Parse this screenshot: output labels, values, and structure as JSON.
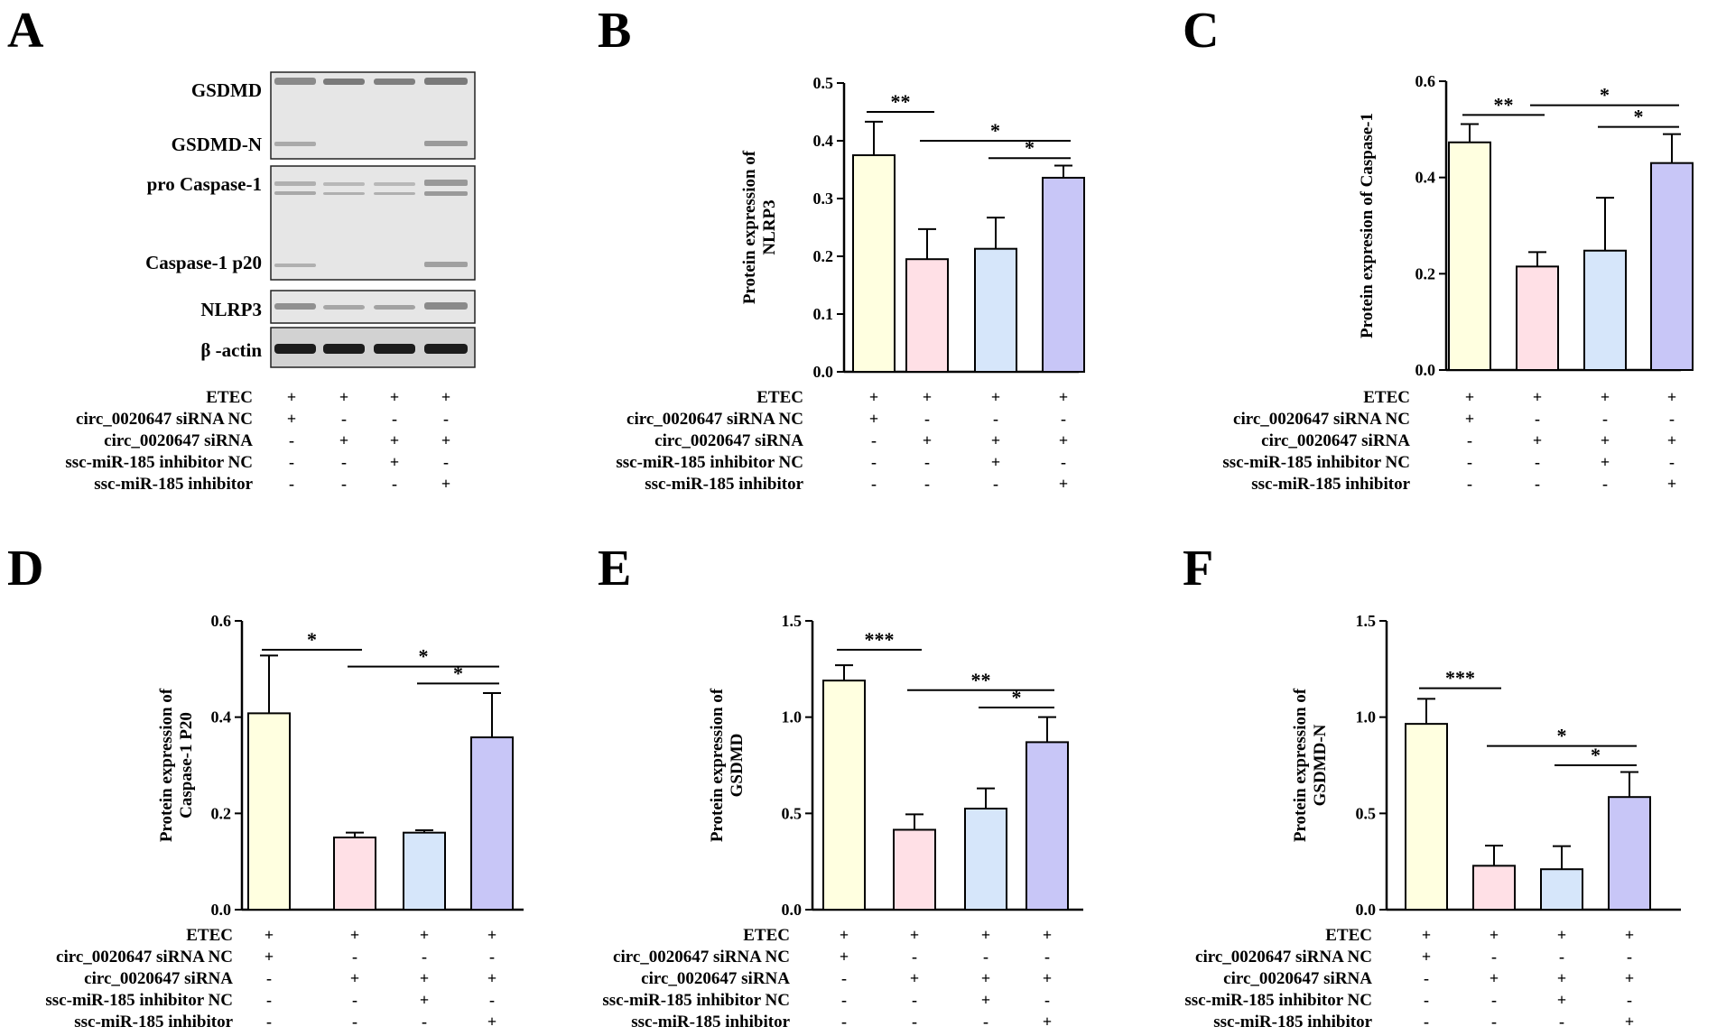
{
  "blot": {
    "letter": "A",
    "labels": {
      "gsdmd": "GSDMD",
      "gsdmd_n": "GSDMD-N",
      "pro_casp": "pro Caspase-1",
      "casp_p20": "Caspase-1 p20",
      "nlrp3": "NLRP3",
      "actin": "β -actin"
    }
  },
  "conditions": {
    "labels": [
      "ETEC",
      "circ_0020647 siRNA NC",
      "circ_0020647 siRNA",
      "ssc-miR-185 inhibitor NC",
      "ssc-miR-185 inhibitor"
    ],
    "matrix": [
      [
        "+",
        "+",
        "+",
        "+"
      ],
      [
        "+",
        "-",
        "-",
        "-"
      ],
      [
        "-",
        "+",
        "+",
        "+"
      ],
      [
        "-",
        "-",
        "+",
        "-"
      ],
      [
        "-",
        "-",
        "-",
        "+"
      ]
    ]
  },
  "colors": {
    "bar_fills": [
      "#ffffe0",
      "#ffe0e6",
      "#d6e6fa",
      "#c8c6f7"
    ],
    "axis": "#000000"
  },
  "chart_data": [
    {
      "id": "B",
      "letter": "B",
      "type": "bar",
      "ylabel_lines": [
        "Protein expression  of",
        "NLRP3"
      ],
      "ylim": [
        0,
        0.5
      ],
      "ticks": [
        0.0,
        0.1,
        0.2,
        0.3,
        0.4,
        0.5
      ],
      "tick_labels": [
        "0.0",
        "0.1",
        "0.2",
        "0.3",
        "0.4",
        "0.5"
      ],
      "values": [
        0.375,
        0.195,
        0.213,
        0.336
      ],
      "errors": [
        0.058,
        0.052,
        0.054,
        0.021
      ],
      "significance": [
        {
          "from": 0,
          "to": 1,
          "y": 0.45,
          "label": "**"
        },
        {
          "from": 1,
          "to": 3,
          "y": 0.4,
          "label": "*"
        },
        {
          "from": 2,
          "to": 3,
          "y": 0.37,
          "label": "*"
        }
      ]
    },
    {
      "id": "C",
      "letter": "C",
      "type": "bar",
      "ylabel_lines": [
        "Protein expresion of Caspase-1"
      ],
      "ylim": [
        0,
        0.6
      ],
      "ticks": [
        0.0,
        0.2,
        0.4,
        0.6
      ],
      "tick_labels": [
        "0.0",
        "0.2",
        "0.4",
        "0.6"
      ],
      "values": [
        0.473,
        0.215,
        0.248,
        0.43
      ],
      "errors": [
        0.038,
        0.03,
        0.11,
        0.06
      ],
      "significance": [
        {
          "from": 0,
          "to": 1,
          "y": 0.53,
          "label": "**"
        },
        {
          "from": 1,
          "to": 3,
          "y": 0.55,
          "label": "*"
        },
        {
          "from": 2,
          "to": 3,
          "y": 0.505,
          "label": "*"
        }
      ]
    },
    {
      "id": "D",
      "letter": "D",
      "type": "bar",
      "ylabel_lines": [
        "Protein expression of",
        "Caspase-1 P20"
      ],
      "ylim": [
        0,
        0.6
      ],
      "ticks": [
        0.0,
        0.2,
        0.4,
        0.6
      ],
      "tick_labels": [
        "0.0",
        "0.2",
        "0.4",
        "0.6"
      ],
      "values": [
        0.408,
        0.15,
        0.16,
        0.358
      ],
      "errors": [
        0.12,
        0.01,
        0.005,
        0.092
      ],
      "significance": [
        {
          "from": 0,
          "to": 1,
          "y": 0.54,
          "label": "*"
        },
        {
          "from": 1,
          "to": 3,
          "y": 0.505,
          "label": "*"
        },
        {
          "from": 2,
          "to": 3,
          "y": 0.47,
          "label": "*"
        }
      ]
    },
    {
      "id": "E",
      "letter": "E",
      "type": "bar",
      "ylabel_lines": [
        "Protein expression of",
        "GSDMD"
      ],
      "ylim": [
        0,
        1.5
      ],
      "ticks": [
        0.0,
        0.5,
        1.0,
        1.5
      ],
      "tick_labels": [
        "0.0",
        "0.5",
        "1.0",
        "1.5"
      ],
      "values": [
        1.19,
        0.415,
        0.525,
        0.87
      ],
      "errors": [
        0.08,
        0.08,
        0.105,
        0.13
      ],
      "significance": [
        {
          "from": 0,
          "to": 1,
          "y": 1.35,
          "label": "***"
        },
        {
          "from": 1,
          "to": 3,
          "y": 1.14,
          "label": "**"
        },
        {
          "from": 2,
          "to": 3,
          "y": 1.05,
          "label": "*"
        }
      ]
    },
    {
      "id": "F",
      "letter": "F",
      "type": "bar",
      "ylabel_lines": [
        "Protein expression of",
        "GSDMD-N"
      ],
      "ylim": [
        0,
        1.5
      ],
      "ticks": [
        0.0,
        0.5,
        1.0,
        1.5
      ],
      "tick_labels": [
        "0.0",
        "0.5",
        "1.0",
        "1.5"
      ],
      "values": [
        0.965,
        0.228,
        0.21,
        0.585
      ],
      "errors": [
        0.13,
        0.105,
        0.12,
        0.13
      ],
      "significance": [
        {
          "from": 0,
          "to": 1,
          "y": 1.15,
          "label": "***"
        },
        {
          "from": 1,
          "to": 3,
          "y": 0.85,
          "label": "*"
        },
        {
          "from": 2,
          "to": 3,
          "y": 0.75,
          "label": "*"
        }
      ]
    }
  ]
}
